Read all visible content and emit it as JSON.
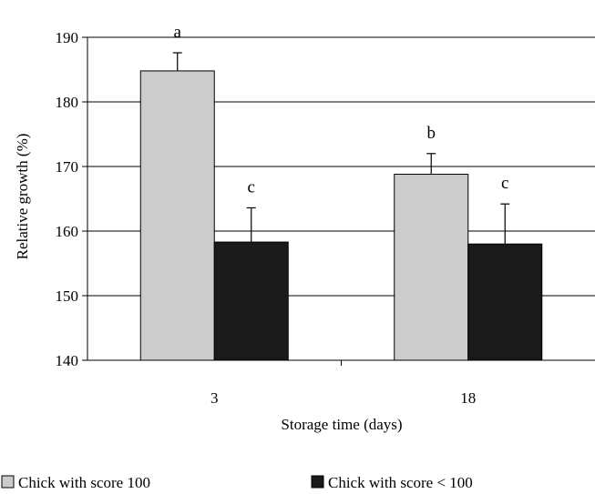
{
  "chart_data": {
    "type": "bar",
    "categories": [
      "3",
      "18"
    ],
    "series": [
      {
        "name": "Chick with score 100",
        "values": [
          184.8,
          168.8
        ],
        "errors": [
          2.8,
          3.2
        ],
        "labels": [
          "a",
          "b"
        ],
        "color": "#cccccc"
      },
      {
        "name": "Chick with score < 100",
        "values": [
          158.3,
          158.0
        ],
        "errors": [
          5.3,
          6.2
        ],
        "labels": [
          "c",
          "c"
        ],
        "color": "#1a1a1a"
      }
    ],
    "xlabel": "Storage time (days)",
    "ylabel": "Relative growth (%)",
    "ylim": [
      140,
      190
    ],
    "yticks": [
      140,
      150,
      160,
      170,
      180,
      190
    ],
    "grid": true,
    "legend": "bottom"
  }
}
